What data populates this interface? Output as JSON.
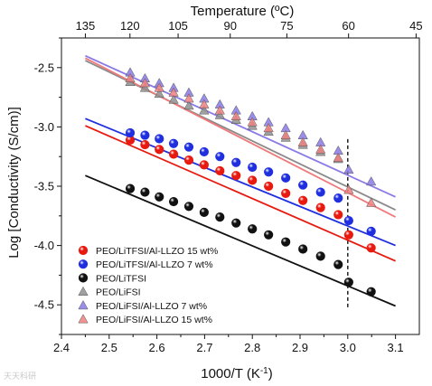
{
  "chart_data": {
    "type": "scatter",
    "title": "",
    "xlabel": "1000/T (K⁻¹)",
    "ylabel": "Log [Conductivity (S/cm)]",
    "top_xlabel": "Temperature (ºC)",
    "xlim": [
      2.4,
      3.15
    ],
    "ylim": [
      -4.75,
      -2.25
    ],
    "x_ticks": [
      2.4,
      2.5,
      2.6,
      2.7,
      2.8,
      2.9,
      3.0,
      3.1
    ],
    "x_tick_labels": [
      "2.4",
      "2.5",
      "2.6",
      "2.7",
      "2.8",
      "2.9",
      "3.0",
      "3.1"
    ],
    "y_ticks": [
      -2.5,
      -3.0,
      -3.5,
      -4.0,
      -4.5
    ],
    "y_tick_labels": [
      "-2.5",
      "-3.0",
      "-3.5",
      "-4.0",
      "-4.5"
    ],
    "top_x_ticks_celsius": [
      135,
      120,
      105,
      90,
      75,
      60,
      45
    ],
    "top_x_tick_labels": [
      "135",
      "120",
      "105",
      "90",
      "75",
      "60",
      "45"
    ],
    "grid": false,
    "legend_position": "bottom-left",
    "reference_line": {
      "x": 3.0,
      "y_range": [
        -4.52,
        -3.1
      ],
      "style": "dashed"
    },
    "series": [
      {
        "name": "PEO/LiTFSI/Al-LLZO 15 wt%",
        "marker": "sphere",
        "color": "#e8190f",
        "line_color": "#e8190f",
        "x": [
          2.544,
          2.575,
          2.605,
          2.635,
          2.667,
          2.699,
          2.732,
          2.766,
          2.8,
          2.834,
          2.87,
          2.906,
          2.943,
          2.98,
          3.002,
          3.049
        ],
        "y": [
          -3.11,
          -3.15,
          -3.19,
          -3.23,
          -3.28,
          -3.32,
          -3.37,
          -3.41,
          -3.45,
          -3.5,
          -3.56,
          -3.62,
          -3.68,
          -3.74,
          -3.91,
          -4.02
        ],
        "fit_x": [
          2.45,
          3.1
        ],
        "fit_y": [
          -2.99,
          -4.13
        ]
      },
      {
        "name": "PEO/LiTFSI/Al-LLZO 7 wt%",
        "marker": "sphere",
        "color": "#1f2fe0",
        "line_color": "#1f2fe0",
        "x": [
          2.544,
          2.575,
          2.605,
          2.635,
          2.667,
          2.699,
          2.732,
          2.766,
          2.8,
          2.834,
          2.87,
          2.906,
          2.943,
          2.98,
          3.002,
          3.049
        ],
        "y": [
          -3.05,
          -3.07,
          -3.1,
          -3.14,
          -3.17,
          -3.21,
          -3.25,
          -3.3,
          -3.34,
          -3.38,
          -3.43,
          -3.49,
          -3.55,
          -3.6,
          -3.79,
          -3.88
        ],
        "fit_x": [
          2.45,
          3.1
        ],
        "fit_y": [
          -2.93,
          -4.0
        ]
      },
      {
        "name": "PEO/LiTFSI",
        "marker": "sphere",
        "color": "#111111",
        "line_color": "#111111",
        "x": [
          2.544,
          2.575,
          2.605,
          2.635,
          2.667,
          2.699,
          2.732,
          2.766,
          2.8,
          2.834,
          2.87,
          2.906,
          2.943,
          2.98,
          3.002,
          3.049
        ],
        "y": [
          -3.52,
          -3.55,
          -3.59,
          -3.63,
          -3.67,
          -3.72,
          -3.76,
          -3.81,
          -3.86,
          -3.91,
          -3.97,
          -4.03,
          -4.09,
          -4.16,
          -4.31,
          -4.39
        ],
        "fit_x": [
          2.45,
          3.1
        ],
        "fit_y": [
          -3.41,
          -4.51
        ]
      },
      {
        "name": "PEO/LiFSI",
        "marker": "triangle",
        "color": "#8f8f8f",
        "line_color": "#8a8a8a",
        "x": [
          2.544,
          2.575,
          2.605,
          2.635,
          2.667,
          2.699,
          2.732,
          2.766,
          2.8,
          2.834,
          2.87,
          2.906,
          2.943,
          2.98
        ],
        "y": [
          -2.62,
          -2.67,
          -2.72,
          -2.77,
          -2.82,
          -2.86,
          -2.9,
          -2.94,
          -2.99,
          -3.04,
          -3.09,
          -3.15,
          -3.21,
          -3.27
        ],
        "fit_x": [
          2.45,
          3.1
        ],
        "fit_y": [
          -2.44,
          -3.7
        ]
      },
      {
        "name": "PEO/LiFSI/Al-LLZO 7 wt%",
        "marker": "triangle",
        "color": "#8a7ae8",
        "line_color": "#8a7ae8",
        "x": [
          2.544,
          2.575,
          2.605,
          2.635,
          2.667,
          2.699,
          2.732,
          2.766,
          2.8,
          2.834,
          2.87,
          2.906,
          2.943,
          2.98,
          3.002,
          3.049
        ],
        "y": [
          -2.54,
          -2.59,
          -2.63,
          -2.67,
          -2.71,
          -2.76,
          -2.81,
          -2.86,
          -2.91,
          -2.96,
          -3.01,
          -3.07,
          -3.13,
          -3.2,
          -3.36,
          -3.46
        ],
        "fit_x": [
          2.45,
          3.1
        ],
        "fit_y": [
          -2.4,
          -3.59
        ]
      },
      {
        "name": "PEO/LiFSI/Al-LLZO 15 wt%",
        "marker": "triangle",
        "color": "#f08080",
        "line_color": "#f07a7a",
        "x": [
          2.544,
          2.575,
          2.605,
          2.635,
          2.667,
          2.699,
          2.732,
          2.766,
          2.8,
          2.834,
          2.87,
          2.906,
          2.943,
          2.98,
          3.002,
          3.049
        ],
        "y": [
          -2.59,
          -2.63,
          -2.67,
          -2.71,
          -2.76,
          -2.81,
          -2.86,
          -2.91,
          -2.96,
          -3.01,
          -3.07,
          -3.13,
          -3.19,
          -3.26,
          -3.53,
          -3.64
        ],
        "fit_x": [
          2.45,
          3.1
        ],
        "fit_y": [
          -2.42,
          -3.76
        ]
      }
    ]
  },
  "watermark": "天天科研"
}
